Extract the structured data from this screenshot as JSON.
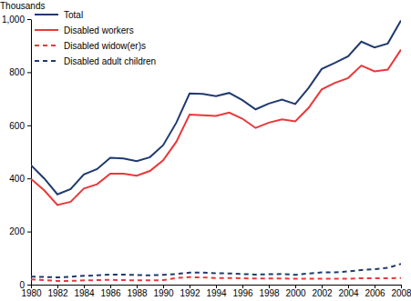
{
  "chart_data": {
    "type": "line",
    "ylabel": "Thousands",
    "x": [
      1980,
      1981,
      1982,
      1983,
      1984,
      1985,
      1986,
      1987,
      1988,
      1989,
      1990,
      1991,
      1992,
      1993,
      1994,
      1995,
      1996,
      1997,
      1998,
      1999,
      2000,
      2001,
      2002,
      2003,
      2004,
      2005,
      2006,
      2007,
      2008
    ],
    "xlim": [
      1980,
      2008
    ],
    "xticks": [
      1980,
      1982,
      1984,
      1986,
      1988,
      1990,
      1992,
      1994,
      1996,
      1998,
      2000,
      2002,
      2004,
      2006,
      2008
    ],
    "ylim": [
      0,
      1000
    ],
    "yticks": [
      0,
      200,
      400,
      600,
      800,
      {
        "value": 1000,
        "label": "1,000"
      }
    ],
    "grid": false,
    "legend": "upper left",
    "series": [
      {
        "name": "Total",
        "color": "#1f3a6e",
        "line_style": "solid",
        "values": [
          450,
          400,
          340,
          360,
          415,
          435,
          478,
          475,
          465,
          480,
          525,
          610,
          720,
          718,
          710,
          722,
          695,
          660,
          682,
          697,
          680,
          740,
          812,
          835,
          860,
          915,
          893,
          908,
          995
        ]
      },
      {
        "name": "Disabled workers",
        "color": "#e8383a",
        "line_style": "solid",
        "values": [
          398,
          355,
          300,
          312,
          362,
          378,
          418,
          418,
          410,
          428,
          468,
          538,
          640,
          638,
          635,
          648,
          625,
          590,
          610,
          622,
          615,
          665,
          735,
          760,
          778,
          825,
          803,
          810,
          885
        ]
      },
      {
        "name": "Disabled widow(er)s",
        "color": "#e8383a",
        "line_style": "dashed",
        "values": [
          20,
          17,
          14,
          14,
          16,
          17,
          18,
          17,
          16,
          16,
          17,
          25,
          28,
          27,
          25,
          25,
          24,
          23,
          23,
          23,
          22,
          22,
          22,
          22,
          22,
          24,
          24,
          24,
          25
        ]
      },
      {
        "name": "Disabled adult children",
        "color": "#1f3a6e",
        "line_style": "dashed",
        "values": [
          30,
          29,
          27,
          30,
          33,
          35,
          38,
          38,
          36,
          35,
          37,
          40,
          45,
          45,
          43,
          42,
          40,
          38,
          39,
          40,
          37,
          42,
          46,
          46,
          50,
          55,
          58,
          63,
          78
        ]
      }
    ]
  }
}
